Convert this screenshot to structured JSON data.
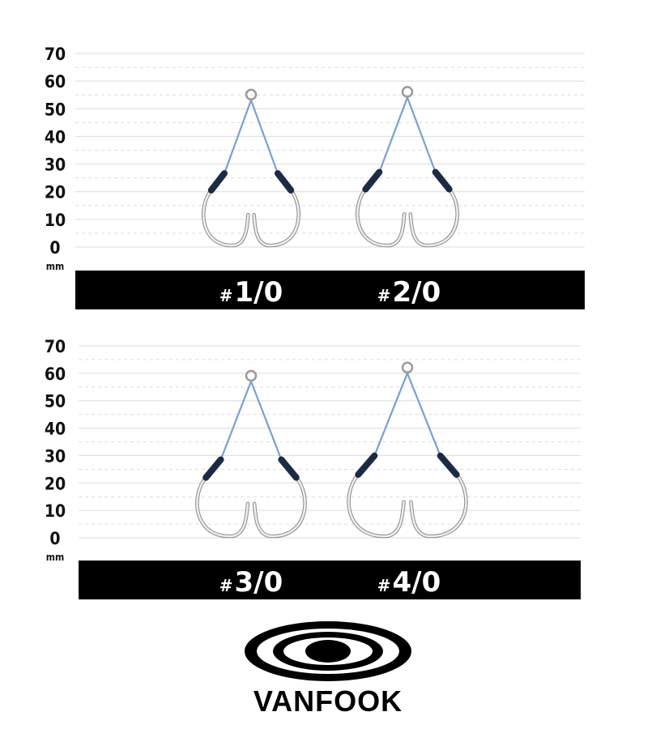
{
  "panels": [
    {
      "y_ticks": [
        "0",
        "10",
        "20",
        "30",
        "40",
        "50",
        "60",
        "70"
      ],
      "unit": "mm",
      "hooks": [
        {
          "size_prefix": "#",
          "size": "1/0",
          "top_mm": 56
        },
        {
          "size_prefix": "#",
          "size": "2/0",
          "top_mm": 57
        }
      ]
    },
    {
      "y_ticks": [
        "0",
        "10",
        "20",
        "30",
        "40",
        "50",
        "60",
        "70"
      ],
      "unit": "mm",
      "hooks": [
        {
          "size_prefix": "#",
          "size": "3/0",
          "top_mm": 60
        },
        {
          "size_prefix": "#",
          "size": "4/0",
          "top_mm": 63
        }
      ]
    }
  ],
  "brand": {
    "name": "VANFOOK"
  },
  "colors": {
    "line": "#7b9fd0",
    "sleeve": "#1c2a44",
    "hook": "#c8c8c8",
    "bar": "#000000"
  }
}
